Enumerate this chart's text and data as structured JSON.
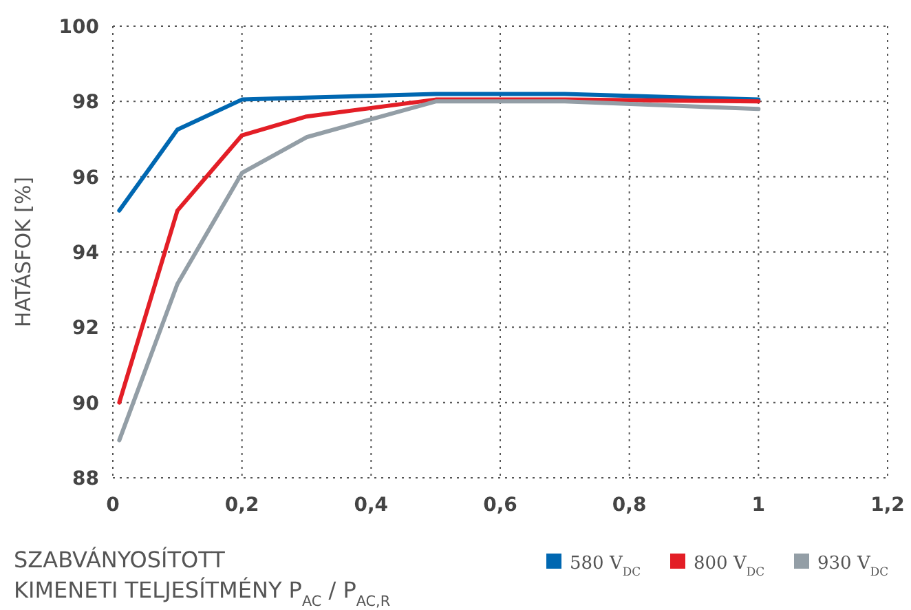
{
  "chart_data": {
    "type": "line",
    "ylabel": "HATÁSFOK [%]",
    "xlabel": "SZABVÁNYOSÍTOTT\nKIMENETI TELJESÍTMÉNY P$_{AC}$ / P$_{AC,R}$",
    "x": [
      0.01,
      0.1,
      0.2,
      0.3,
      0.5,
      0.7,
      1.0
    ],
    "series": [
      {
        "name": "580 V$_{DC}$",
        "color": "#0067b1",
        "values": [
          95.1,
          97.25,
          98.05,
          98.1,
          98.2,
          98.2,
          98.05
        ]
      },
      {
        "name": "800 V$_{DC}$",
        "color": "#e31e26",
        "values": [
          90,
          95.1,
          97.1,
          97.6,
          98.05,
          98.05,
          98.0
        ]
      },
      {
        "name": "930 V$_{DC}$",
        "color": "#939ea6",
        "values": [
          89,
          93.15,
          96.1,
          97.05,
          98.0,
          98.0,
          97.8
        ]
      }
    ],
    "xlim": [
      0,
      1.2
    ],
    "xticks": [
      0,
      {
        "value": 0.2,
        "label": "0,2"
      },
      {
        "value": 0.4,
        "label": "0,4"
      },
      {
        "value": 0.6,
        "label": "0,6"
      },
      {
        "value": 0.8,
        "label": "0,8"
      },
      1,
      {
        "value": 1.2,
        "label": "1,2"
      }
    ],
    "ylim": [
      88,
      100
    ],
    "yticks": [
      88,
      90,
      92,
      94,
      96,
      98,
      100
    ],
    "grid": true,
    "legend": "bottom right",
    "line_style": "solid",
    "marker": "none"
  }
}
